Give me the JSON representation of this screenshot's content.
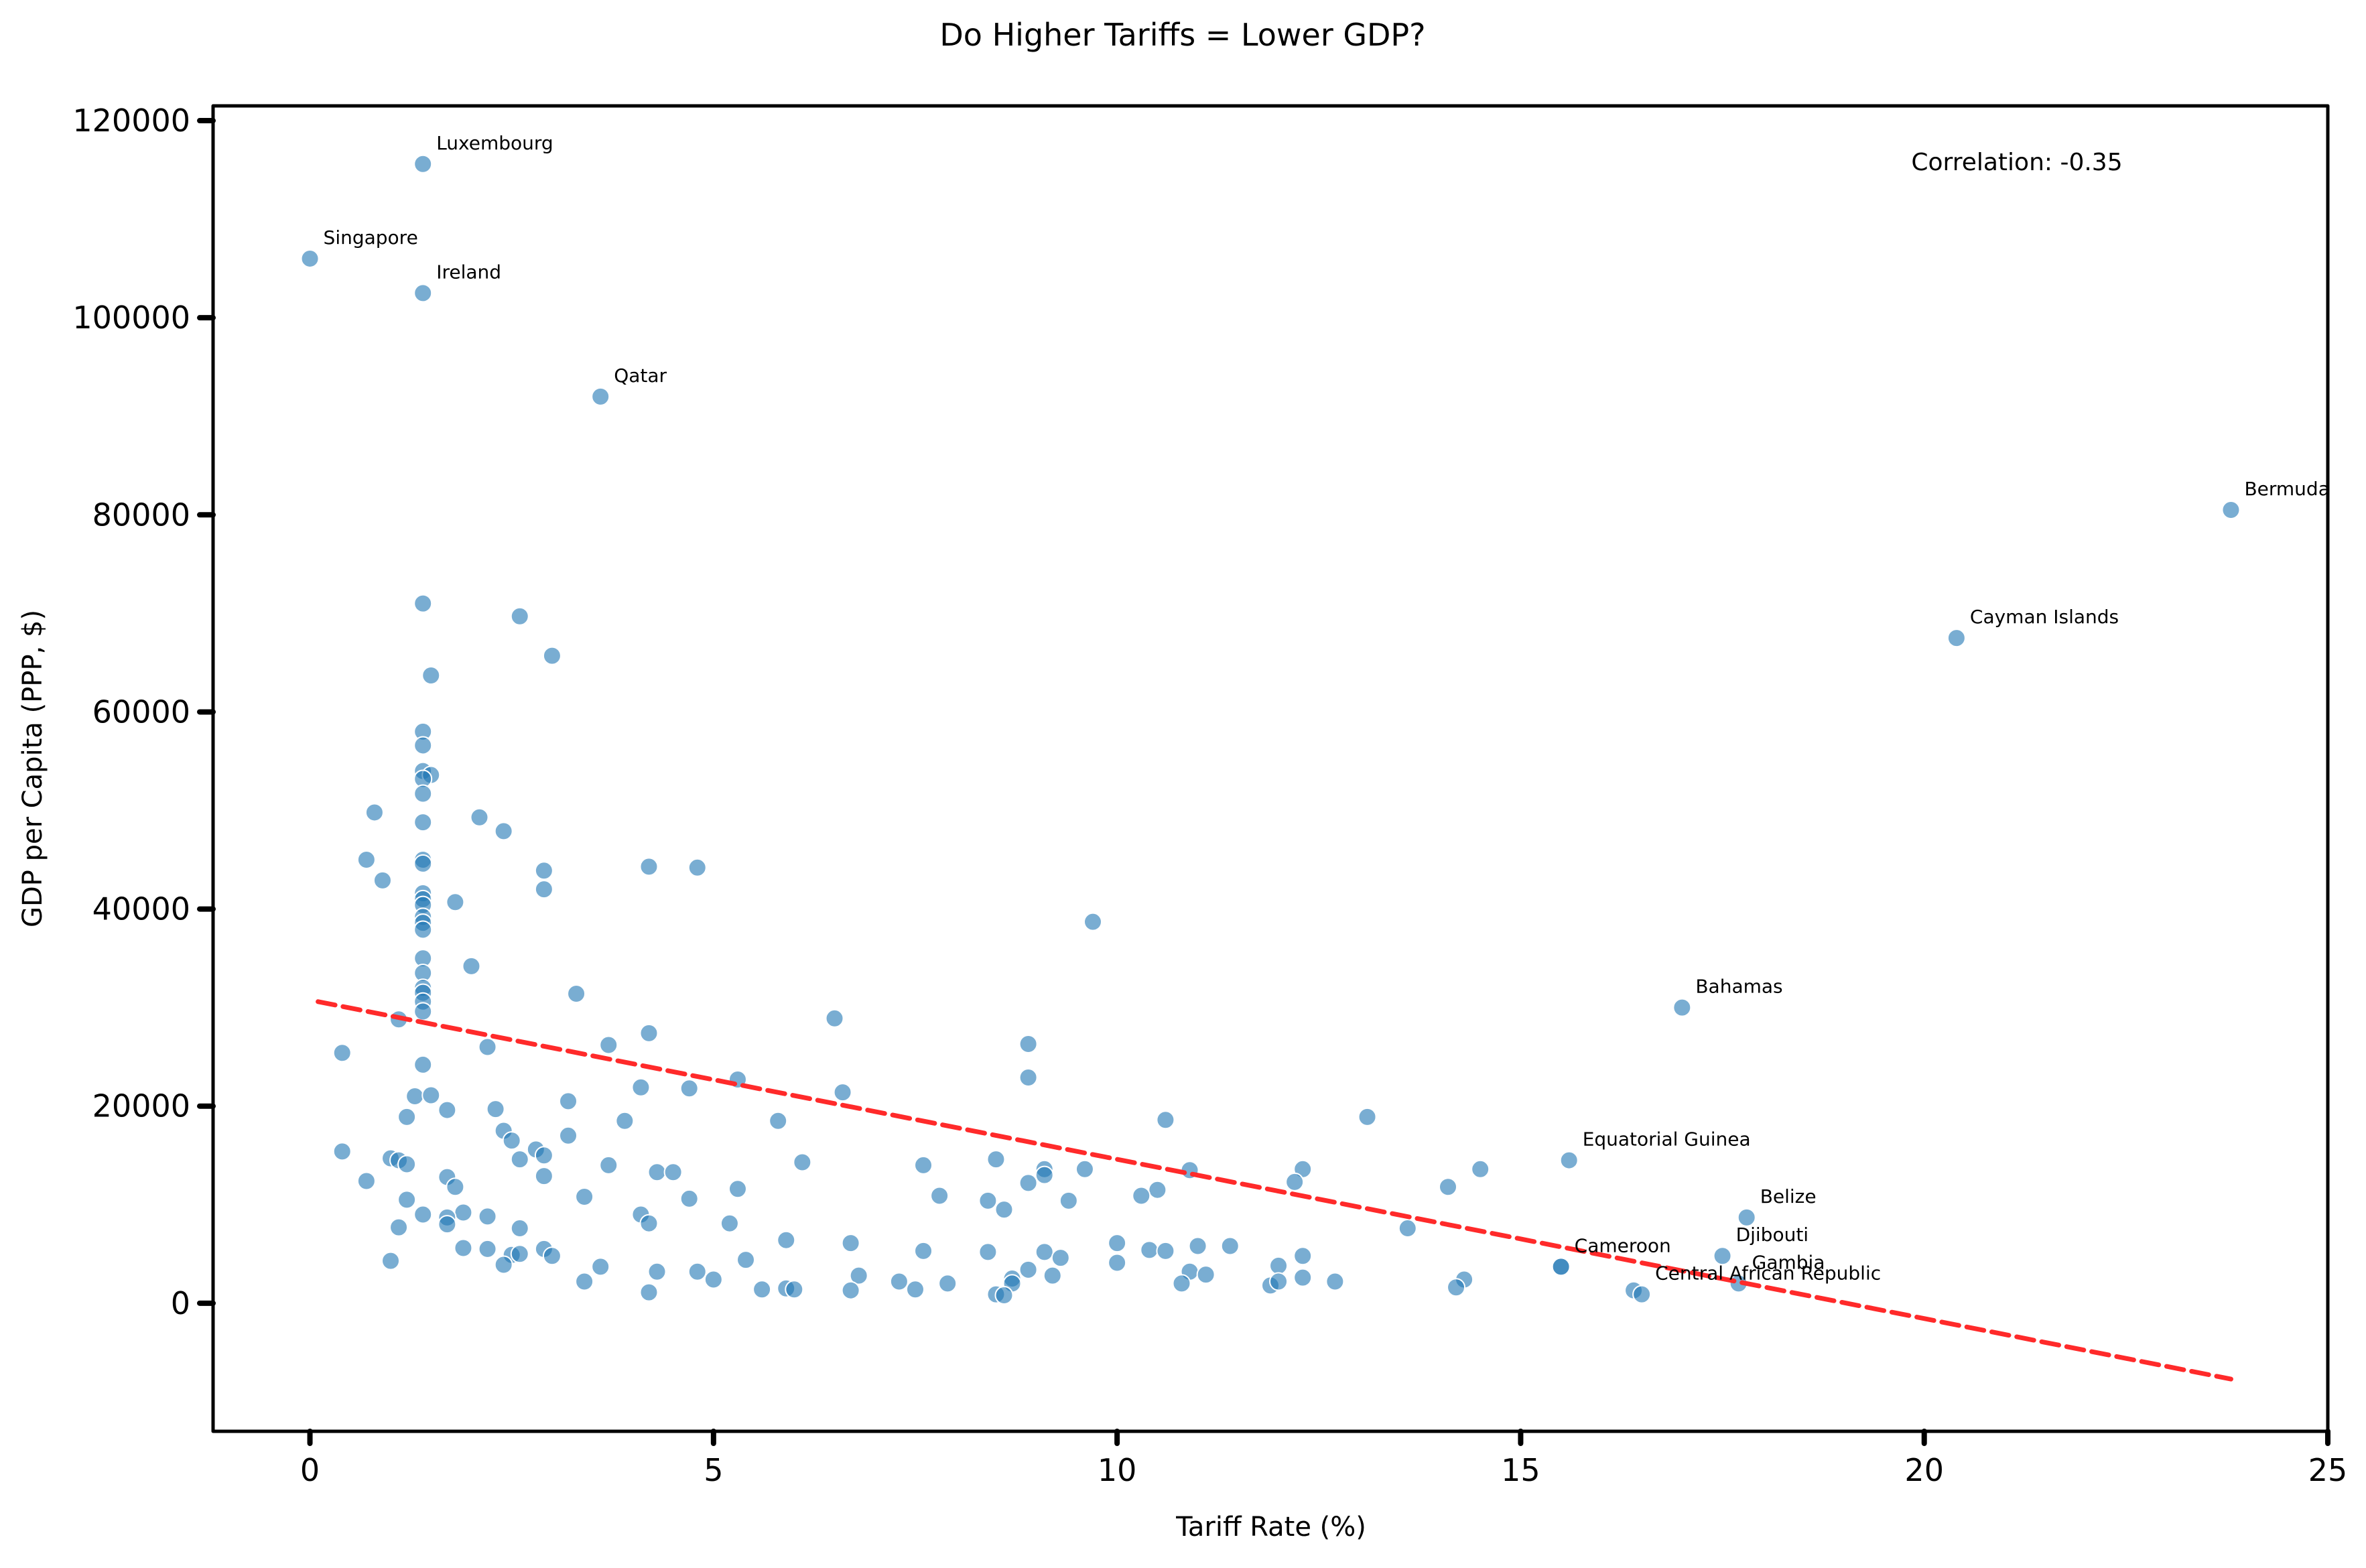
{
  "chart_data": {
    "type": "scatter",
    "title": "Do Higher Tariffs = Lower GDP?",
    "xlabel": "Tariff Rate (%)",
    "ylabel": "GDP per Capita (PPP, $)",
    "xlim": [
      -1.2,
      25
    ],
    "ylim": [
      -13000,
      121500
    ],
    "xticks": [
      0,
      5,
      10,
      15,
      20,
      25
    ],
    "yticks": [
      0,
      20000,
      40000,
      60000,
      80000,
      100000,
      120000
    ],
    "grid": false,
    "legend": "none",
    "annotation": "Correlation: -0.35",
    "point_color": "#1f77b4",
    "trend_color": "#ff2a2a",
    "trendline": {
      "x": [
        0.1,
        23.8
      ],
      "y": [
        30600,
        -7700
      ]
    },
    "labeled_points": [
      {
        "label": "Luxembourg",
        "x": 1.4,
        "y": 115600
      },
      {
        "label": "Singapore",
        "x": 0.0,
        "y": 106000
      },
      {
        "label": "Ireland",
        "x": 1.4,
        "y": 102500
      },
      {
        "label": "Qatar",
        "x": 3.6,
        "y": 92000
      },
      {
        "label": "Bermuda",
        "x": 23.8,
        "y": 80500
      },
      {
        "label": "Cayman Islands",
        "x": 20.4,
        "y": 67500
      },
      {
        "label": "Bahamas",
        "x": 17.0,
        "y": 30000
      },
      {
        "label": "Equatorial Guinea",
        "x": 15.6,
        "y": 14500
      },
      {
        "label": "Belize",
        "x": 17.8,
        "y": 8700
      },
      {
        "label": "Djibouti",
        "x": 17.5,
        "y": 4800
      },
      {
        "label": "Cameroon",
        "x": 15.5,
        "y": 3700
      },
      {
        "label": "Gambia",
        "x": 17.7,
        "y": 2000
      },
      {
        "label": "Central African Republic",
        "x": 16.5,
        "y": 900
      }
    ],
    "points": [
      [
        1.4,
        71000
      ],
      [
        2.6,
        69700
      ],
      [
        3.0,
        65700
      ],
      [
        1.5,
        63700
      ],
      [
        1.4,
        58000
      ],
      [
        1.4,
        56600
      ],
      [
        1.4,
        54000
      ],
      [
        1.5,
        53600
      ],
      [
        1.4,
        53200
      ],
      [
        1.4,
        51700
      ],
      [
        0.8,
        49800
      ],
      [
        2.1,
        49300
      ],
      [
        1.4,
        48800
      ],
      [
        2.4,
        47900
      ],
      [
        0.7,
        45000
      ],
      [
        1.4,
        45000
      ],
      [
        1.4,
        44600
      ],
      [
        2.9,
        43900
      ],
      [
        4.2,
        44300
      ],
      [
        4.8,
        44200
      ],
      [
        0.9,
        42900
      ],
      [
        2.9,
        42000
      ],
      [
        1.4,
        41600
      ],
      [
        1.4,
        41000
      ],
      [
        1.8,
        40700
      ],
      [
        1.4,
        40400
      ],
      [
        1.4,
        39200
      ],
      [
        1.4,
        38600
      ],
      [
        9.7,
        38700
      ],
      [
        1.4,
        37900
      ],
      [
        1.4,
        35000
      ],
      [
        2.0,
        34200
      ],
      [
        1.4,
        33500
      ],
      [
        1.4,
        32000
      ],
      [
        1.4,
        31500
      ],
      [
        3.3,
        31400
      ],
      [
        1.4,
        30600
      ],
      [
        1.4,
        29600
      ],
      [
        6.5,
        28900
      ],
      [
        1.1,
        28800
      ],
      [
        4.2,
        27400
      ],
      [
        8.9,
        26300
      ],
      [
        3.7,
        26200
      ],
      [
        0.4,
        25400
      ],
      [
        2.2,
        26000
      ],
      [
        1.4,
        24200
      ],
      [
        8.9,
        22900
      ],
      [
        5.3,
        22700
      ],
      [
        4.1,
        21900
      ],
      [
        4.7,
        21800
      ],
      [
        6.6,
        21400
      ],
      [
        1.3,
        21000
      ],
      [
        1.5,
        21100
      ],
      [
        3.2,
        20500
      ],
      [
        1.7,
        19600
      ],
      [
        2.3,
        19700
      ],
      [
        1.2,
        18900
      ],
      [
        5.8,
        18500
      ],
      [
        3.9,
        18500
      ],
      [
        10.6,
        18600
      ],
      [
        13.1,
        18900
      ],
      [
        2.4,
        17500
      ],
      [
        3.2,
        17000
      ],
      [
        2.5,
        16500
      ],
      [
        0.4,
        15400
      ],
      [
        2.8,
        15600
      ],
      [
        2.9,
        15000
      ],
      [
        1.0,
        14700
      ],
      [
        2.6,
        14600
      ],
      [
        1.1,
        14500
      ],
      [
        1.2,
        14100
      ],
      [
        3.7,
        14000
      ],
      [
        6.1,
        14300
      ],
      [
        7.6,
        14000
      ],
      [
        8.5,
        14600
      ],
      [
        9.1,
        13600
      ],
      [
        9.6,
        13600
      ],
      [
        10.9,
        13500
      ],
      [
        12.3,
        13600
      ],
      [
        14.5,
        13600
      ],
      [
        4.3,
        13300
      ],
      [
        4.5,
        13300
      ],
      [
        9.1,
        13000
      ],
      [
        1.7,
        12800
      ],
      [
        0.7,
        12400
      ],
      [
        2.9,
        12900
      ],
      [
        8.9,
        12200
      ],
      [
        12.2,
        12300
      ],
      [
        1.8,
        11800
      ],
      [
        5.3,
        11600
      ],
      [
        14.1,
        11800
      ],
      [
        10.5,
        11500
      ],
      [
        10.3,
        10900
      ],
      [
        3.4,
        10800
      ],
      [
        7.8,
        10900
      ],
      [
        9.4,
        10400
      ],
      [
        1.2,
        10500
      ],
      [
        4.7,
        10600
      ],
      [
        8.4,
        10400
      ],
      [
        8.6,
        9500
      ],
      [
        1.9,
        9200
      ],
      [
        1.4,
        9000
      ],
      [
        4.1,
        9000
      ],
      [
        1.7,
        8700
      ],
      [
        2.2,
        8800
      ],
      [
        1.7,
        8000
      ],
      [
        4.2,
        8100
      ],
      [
        5.2,
        8100
      ],
      [
        1.1,
        7700
      ],
      [
        2.6,
        7600
      ],
      [
        13.6,
        7600
      ],
      [
        5.9,
        6400
      ],
      [
        6.7,
        6100
      ],
      [
        10.0,
        6100
      ],
      [
        11.0,
        5800
      ],
      [
        11.4,
        5800
      ],
      [
        1.9,
        5600
      ],
      [
        2.2,
        5500
      ],
      [
        2.9,
        5500
      ],
      [
        7.6,
        5300
      ],
      [
        8.4,
        5200
      ],
      [
        9.1,
        5200
      ],
      [
        10.4,
        5400
      ],
      [
        10.6,
        5300
      ],
      [
        12.3,
        4800
      ],
      [
        3.0,
        4800
      ],
      [
        2.5,
        4900
      ],
      [
        2.6,
        5000
      ],
      [
        5.4,
        4400
      ],
      [
        9.3,
        4600
      ],
      [
        1.0,
        4300
      ],
      [
        2.4,
        3900
      ],
      [
        3.6,
        3700
      ],
      [
        8.9,
        3400
      ],
      [
        10.0,
        4100
      ],
      [
        12.0,
        3800
      ],
      [
        15.5,
        3700
      ],
      [
        4.3,
        3200
      ],
      [
        4.8,
        3200
      ],
      [
        9.2,
        2800
      ],
      [
        10.9,
        3200
      ],
      [
        11.1,
        2900
      ],
      [
        12.3,
        2600
      ],
      [
        14.3,
        2400
      ],
      [
        3.4,
        2200
      ],
      [
        5.0,
        2400
      ],
      [
        6.8,
        2800
      ],
      [
        7.3,
        2200
      ],
      [
        7.9,
        2000
      ],
      [
        8.7,
        2500
      ],
      [
        8.7,
        2000
      ],
      [
        10.8,
        2000
      ],
      [
        11.9,
        1800
      ],
      [
        12.0,
        2200
      ],
      [
        12.7,
        2200
      ],
      [
        5.6,
        1400
      ],
      [
        5.9,
        1500
      ],
      [
        6.0,
        1400
      ],
      [
        6.7,
        1300
      ],
      [
        7.5,
        1400
      ],
      [
        8.5,
        900
      ],
      [
        4.2,
        1100
      ],
      [
        8.6,
        800
      ],
      [
        14.2,
        1600
      ],
      [
        16.4,
        1300
      ]
    ]
  }
}
